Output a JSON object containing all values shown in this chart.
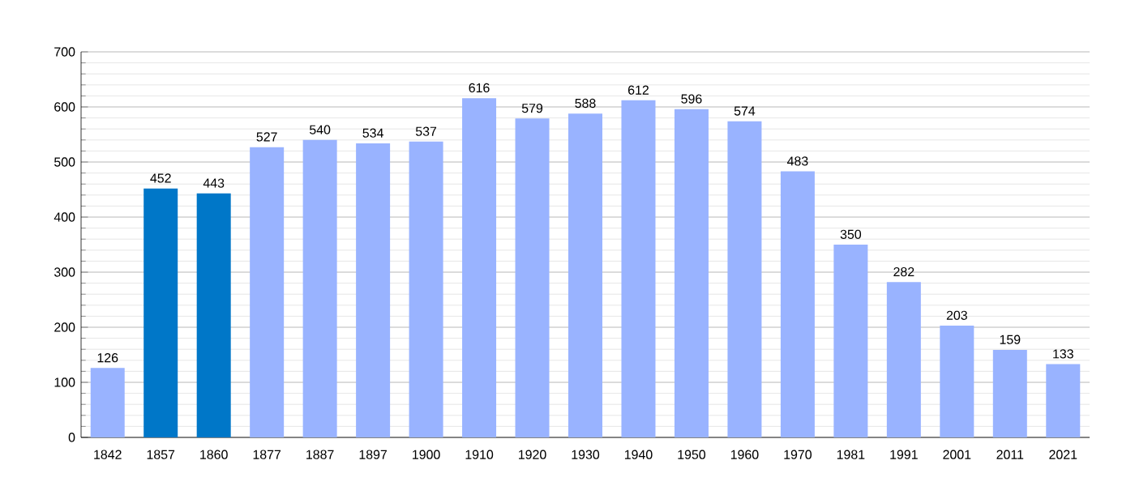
{
  "chart_data": {
    "type": "bar",
    "categories": [
      "1842",
      "1857",
      "1860",
      "1877",
      "1887",
      "1897",
      "1900",
      "1910",
      "1920",
      "1930",
      "1940",
      "1950",
      "1960",
      "1970",
      "1981",
      "1991",
      "2001",
      "2011",
      "2021"
    ],
    "values": [
      126,
      452,
      443,
      527,
      540,
      534,
      537,
      616,
      579,
      588,
      612,
      596,
      574,
      483,
      350,
      282,
      203,
      159,
      133
    ],
    "colors": [
      "#99b3ff",
      "#0077c8",
      "#0077c8",
      "#99b3ff",
      "#99b3ff",
      "#99b3ff",
      "#99b3ff",
      "#99b3ff",
      "#99b3ff",
      "#99b3ff",
      "#99b3ff",
      "#99b3ff",
      "#99b3ff",
      "#99b3ff",
      "#99b3ff",
      "#99b3ff",
      "#99b3ff",
      "#99b3ff",
      "#99b3ff"
    ],
    "ylim": [
      0,
      700
    ],
    "yticks": [
      0,
      100,
      200,
      300,
      400,
      500,
      600,
      700
    ],
    "grid": "y",
    "data_labels": true
  }
}
